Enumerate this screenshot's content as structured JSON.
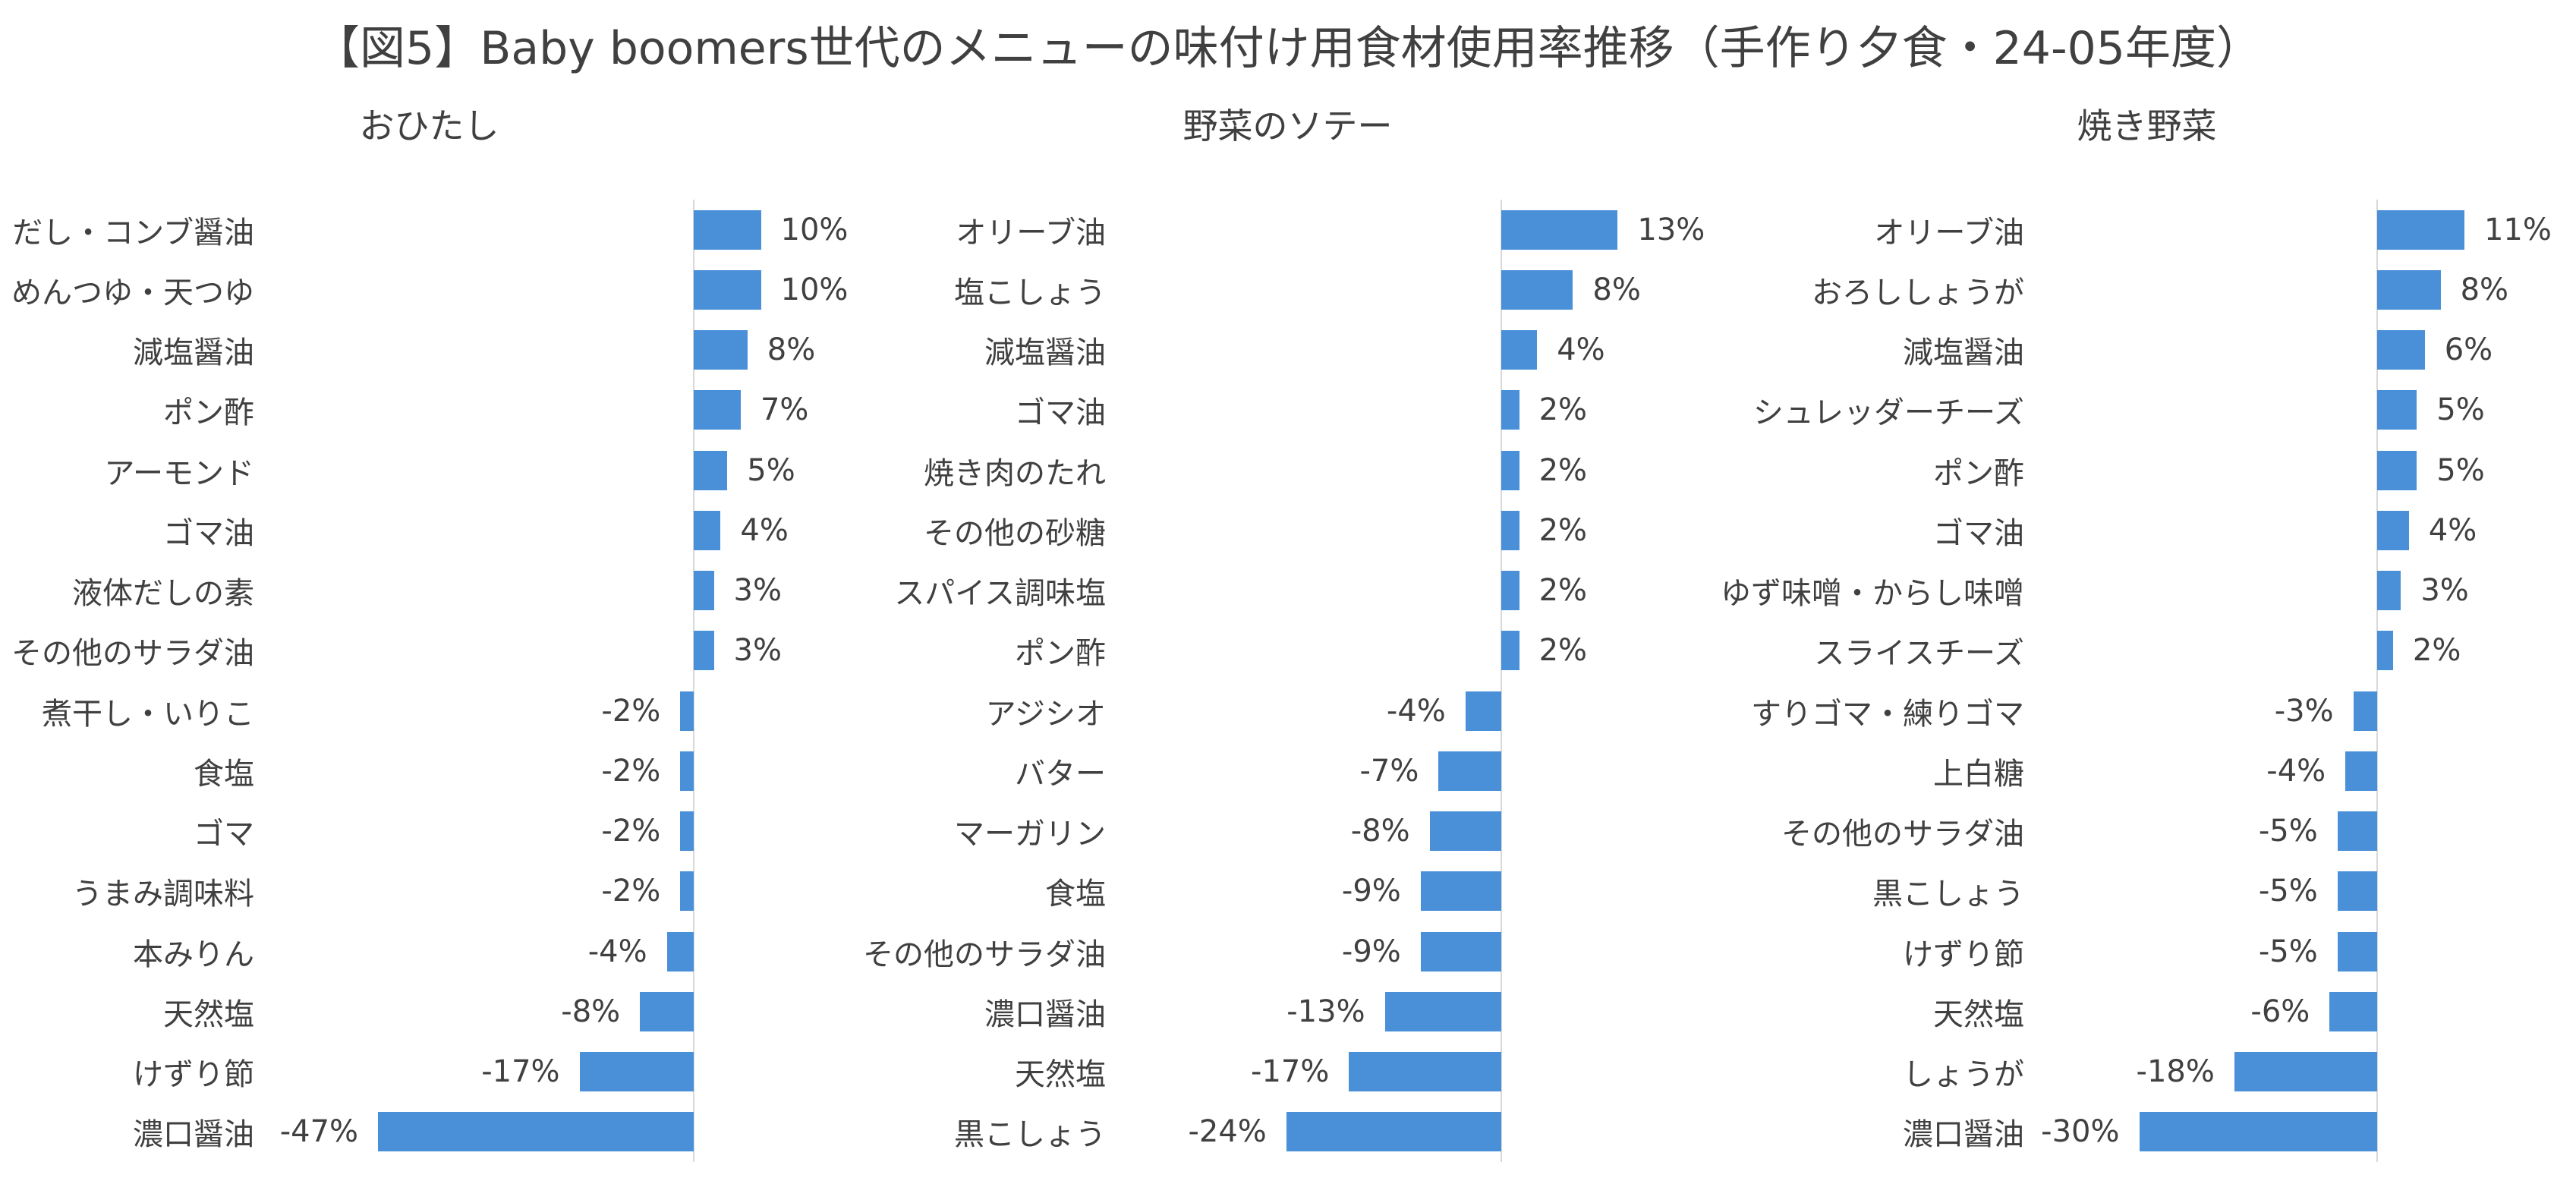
{
  "title": "【図5】Baby boomers世代のメニューの味付け用食材使用率推移（手作り夕食・24-05年度）",
  "colors": {
    "bar": "#4A90D9",
    "axis_line": "#D9D9D9",
    "text": "#404040",
    "background": "#FFFFFF"
  },
  "chart_data": [
    {
      "type": "bar",
      "orientation": "horizontal",
      "title": "おひたし",
      "categories": [
        "だし・コンブ醤油",
        "めんつゆ・天つゆ",
        "減塩醤油",
        "ポン酢",
        "アーモンド",
        "ゴマ油",
        "液体だしの素",
        "その他のサラダ油",
        "煮干し・いりこ",
        "食塩",
        "ゴマ",
        "うまみ調味料",
        "本みりん",
        "天然塩",
        "けずり節",
        "濃口醤油"
      ],
      "values": [
        10,
        10,
        8,
        7,
        5,
        4,
        3,
        3,
        -2,
        -2,
        -2,
        -2,
        -4,
        -8,
        -17,
        -47
      ],
      "data_labels": [
        "10%",
        "10%",
        "8%",
        "7%",
        "5%",
        "4%",
        "3%",
        "3%",
        "-2%",
        "-2%",
        "-2%",
        "-2%",
        "-4%",
        "-8%",
        "-17%",
        "-47%"
      ],
      "xlim": [
        -60,
        20
      ],
      "grid": false,
      "legend": "none"
    },
    {
      "type": "bar",
      "orientation": "horizontal",
      "title": "野菜のソテー",
      "categories": [
        "オリーブ油",
        "塩こしょう",
        "減塩醤油",
        "ゴマ油",
        "焼き肉のたれ",
        "その他の砂糖",
        "スパイス調味塩",
        "ポン酢",
        "アジシオ",
        "バター",
        "マーガリン",
        "食塩",
        "その他のサラダ油",
        "濃口醤油",
        "天然塩",
        "黒こしょう"
      ],
      "values": [
        13,
        8,
        4,
        2,
        2,
        2,
        2,
        2,
        -4,
        -7,
        -8,
        -9,
        -9,
        -13,
        -17,
        -24
      ],
      "data_labels": [
        "13%",
        "8%",
        "4%",
        "2%",
        "2%",
        "2%",
        "2%",
        "2%",
        "-4%",
        "-7%",
        "-8%",
        "-9%",
        "-9%",
        "-13%",
        "-17%",
        "-24%"
      ],
      "xlim": [
        -40,
        20
      ],
      "grid": false,
      "legend": "none"
    },
    {
      "type": "bar",
      "orientation": "horizontal",
      "title": "焼き野菜",
      "categories": [
        "オリーブ油",
        "おろししょうが",
        "減塩醤油",
        "シュレッダーチーズ",
        "ポン酢",
        "ゴマ油",
        "ゆず味噌・からし味噌",
        "スライスチーズ",
        "すりゴマ・練りゴマ",
        "上白糖",
        "その他のサラダ油",
        "黒こしょう",
        "けずり節",
        "天然塩",
        "しょうが",
        "濃口醤油"
      ],
      "values": [
        11,
        8,
        6,
        5,
        5,
        4,
        3,
        2,
        -3,
        -4,
        -5,
        -5,
        -5,
        -6,
        -18,
        -30
      ],
      "data_labels": [
        "11%",
        "8%",
        "6%",
        "5%",
        "5%",
        "4%",
        "3%",
        "2%",
        "-3%",
        "-4%",
        "-5%",
        "-5%",
        "-5%",
        "-6%",
        "-18%",
        "-30%"
      ],
      "xlim": [
        -40,
        20
      ],
      "grid": false,
      "legend": "none"
    }
  ]
}
